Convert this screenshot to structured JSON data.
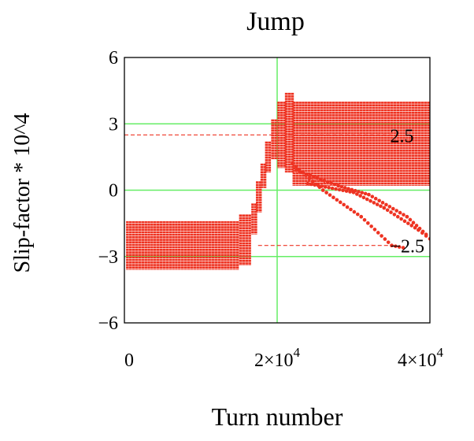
{
  "chart_data": {
    "type": "scatter",
    "title": "Jump",
    "xlabel": "Turn number",
    "ylabel": "Slip-factor * 10^4",
    "xlim": [
      0,
      40000
    ],
    "ylim": [
      -6,
      6
    ],
    "x_ticks": [
      {
        "value": 0,
        "label": "0"
      },
      {
        "value": 20000,
        "label": "2×10",
        "exp": "4"
      },
      {
        "value": 40000,
        "label": "4×10",
        "exp": "4"
      }
    ],
    "y_ticks": [
      {
        "value": 6,
        "label": "6"
      },
      {
        "value": 3,
        "label": "3"
      },
      {
        "value": 0,
        "label": "0"
      },
      {
        "value": -3,
        "label": "−3"
      },
      {
        "value": -6,
        "label": "−6"
      }
    ],
    "grid": {
      "x": [
        20000
      ],
      "y": [
        3,
        0,
        -3
      ],
      "color": "#66ee66"
    },
    "series_color": "#ee3322",
    "reference_lines": [
      {
        "y": 2.5,
        "x_range": [
          0,
          35000
        ],
        "label": "2.5"
      },
      {
        "y": -2.5,
        "x_range": [
          17500,
          35000
        ],
        "label": "−2.5"
      }
    ],
    "bands": [
      {
        "x_range": [
          200,
          15000
        ],
        "step": 400,
        "low": -3.6,
        "high": -1.4
      },
      {
        "x_range": [
          15000,
          16500
        ],
        "step": 400,
        "low": -3.4,
        "high": -1.1
      },
      {
        "x_range": [
          16600,
          17200
        ],
        "step": 400,
        "low": -2.0,
        "high": -0.6
      },
      {
        "x_range": [
          17200,
          17800
        ],
        "step": 400,
        "low": -1.0,
        "high": 0.4
      },
      {
        "x_range": [
          17800,
          18400
        ],
        "step": 400,
        "low": 0.1,
        "high": 1.2
      },
      {
        "x_range": [
          18400,
          19200
        ],
        "step": 400,
        "low": 0.8,
        "high": 2.2
      },
      {
        "x_range": [
          19200,
          20000
        ],
        "step": 400,
        "low": 1.4,
        "high": 3.2
      },
      {
        "x_range": [
          20000,
          21000
        ],
        "step": 400,
        "low": 1.0,
        "high": 4.0
      },
      {
        "x_range": [
          21000,
          22000
        ],
        "step": 400,
        "low": 0.8,
        "high": 4.4
      },
      {
        "x_range": [
          22000,
          40000
        ],
        "step": 400,
        "low": 0.2,
        "high": 4.0
      }
    ],
    "descending_tracks": [
      {
        "points": [
          [
            22000,
            1.2
          ],
          [
            26000,
            0.0
          ],
          [
            31000,
            -1.2
          ],
          [
            35000,
            -2.5
          ],
          [
            36500,
            -2.6
          ]
        ]
      },
      {
        "points": [
          [
            22500,
            0.9
          ],
          [
            28000,
            0.2
          ],
          [
            32000,
            -0.2
          ],
          [
            37000,
            -1.2
          ],
          [
            39500,
            -2.0
          ]
        ]
      },
      {
        "points": [
          [
            24000,
            0.3
          ],
          [
            30000,
            -0.1
          ],
          [
            34000,
            -0.8
          ],
          [
            38500,
            -1.8
          ],
          [
            40000,
            -2.2
          ]
        ]
      }
    ]
  }
}
